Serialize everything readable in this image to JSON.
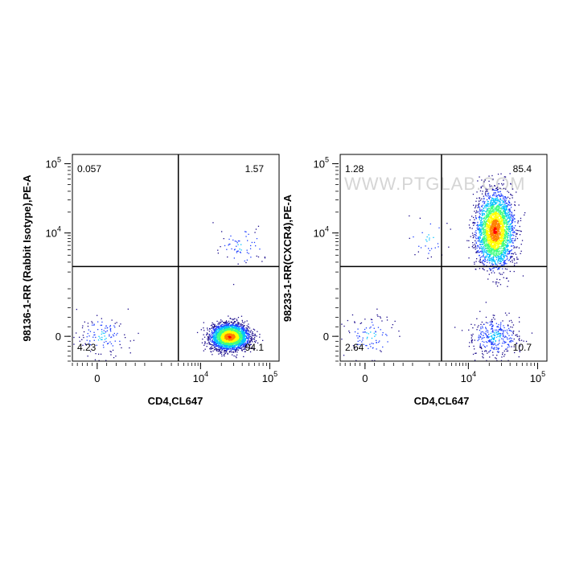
{
  "watermark": "WWW.PTGLAB.COM",
  "chart_data": [
    {
      "type": "scatter",
      "title": "",
      "xlabel": "CD4,CL647",
      "ylabel": "98136-1-RR (Rabbit Isotype),PE-A",
      "x_scale": "biexponential",
      "y_scale": "biexponential",
      "x_ticks": [
        {
          "base": "0",
          "exp": ""
        },
        {
          "base": "10",
          "exp": "4"
        },
        {
          "base": "10",
          "exp": "5"
        }
      ],
      "y_ticks": [
        {
          "base": "0",
          "exp": ""
        },
        {
          "base": "10",
          "exp": "4"
        },
        {
          "base": "10",
          "exp": "5"
        }
      ],
      "quadrant_gate": {
        "x": 4000,
        "y": 2500
      },
      "quadrants": {
        "upper_left": "0.057",
        "upper_right": "1.57",
        "lower_left": "4.23",
        "lower_right": "94.1"
      },
      "populations": [
        {
          "x_center": 26000,
          "y_center": 0,
          "fraction": 0.94
        },
        {
          "x_center": 100,
          "y_center": 0,
          "fraction": 0.04
        },
        {
          "x_center": 40000,
          "y_center": 6000,
          "fraction": 0.02
        }
      ],
      "colormap": [
        "#1a0a8a",
        "#2040ff",
        "#00c0ff",
        "#40ff80",
        "#ffff00",
        "#ff8000",
        "#ff0000"
      ]
    },
    {
      "type": "scatter",
      "title": "",
      "xlabel": "CD4,CL647",
      "ylabel": "98233-1-RR(CXCR4),PE-A",
      "x_scale": "biexponential",
      "y_scale": "biexponential",
      "x_ticks": [
        {
          "base": "0",
          "exp": ""
        },
        {
          "base": "10",
          "exp": "4"
        },
        {
          "base": "10",
          "exp": "5"
        }
      ],
      "y_ticks": [
        {
          "base": "0",
          "exp": ""
        },
        {
          "base": "10",
          "exp": "4"
        },
        {
          "base": "10",
          "exp": "5"
        }
      ],
      "quadrant_gate": {
        "x": 3300,
        "y": 2500
      },
      "quadrants": {
        "upper_left": "1.28",
        "upper_right": "85.4",
        "lower_left": "2.64",
        "lower_right": "10.7"
      },
      "populations": [
        {
          "x_center": 24000,
          "y_center": 11000,
          "fraction": 0.85
        },
        {
          "x_center": 24000,
          "y_center": 0,
          "fraction": 0.11
        },
        {
          "x_center": 100,
          "y_center": 0,
          "fraction": 0.03
        },
        {
          "x_center": 2000,
          "y_center": 8000,
          "fraction": 0.01
        }
      ],
      "colormap": [
        "#1a0a8a",
        "#2040ff",
        "#00c0ff",
        "#40ff80",
        "#ffff00",
        "#ff8000",
        "#ff0000"
      ]
    }
  ]
}
